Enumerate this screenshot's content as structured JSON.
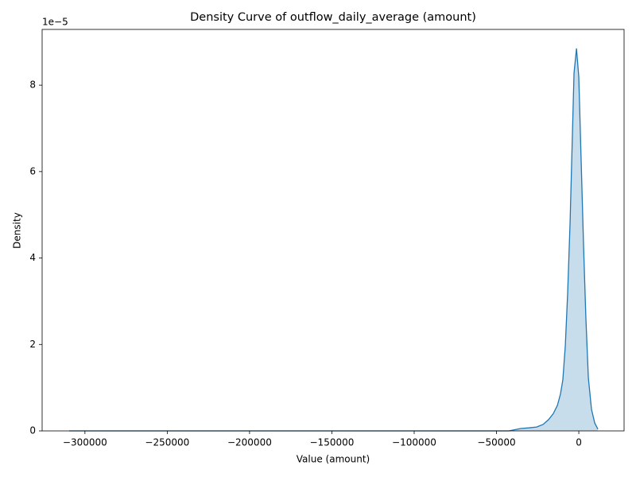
{
  "chart_data": {
    "type": "area",
    "title": "Density Curve of outflow_daily_average (amount)",
    "xlabel": "Value (amount)",
    "ylabel": "Density",
    "y_offset_label": "1e−5",
    "color": "#1f77b4",
    "x": [
      -309600,
      -42500,
      -40100,
      -35300,
      -30400,
      -25600,
      -21700,
      -18400,
      -15500,
      -13000,
      -11100,
      -9700,
      -8200,
      -6800,
      -5300,
      -3900,
      -2900,
      -1400,
      0,
      1400,
      2900,
      4300,
      5800,
      7700,
      9700,
      11600
    ],
    "y": [
      0,
      0,
      1.8e-07,
      5.5e-07,
      7e-07,
      9e-07,
      1.5e-06,
      2.6e-06,
      4e-06,
      5.9e-06,
      8.6e-06,
      1.18e-05,
      1.97e-05,
      3.16e-05,
      4.82e-05,
      6.84e-05,
      8.28e-05,
      8.85e-05,
      8.18e-05,
      6.29e-05,
      4.27e-05,
      2.61e-05,
      1.23e-05,
      5e-06,
      1.8e-06,
      4e-07
    ],
    "xlim": [
      -326000,
      27500
    ],
    "ylim": [
      0,
      9.29e-05
    ],
    "xticks": [
      {
        "value": -300000,
        "label": "−300000"
      },
      {
        "value": -250000,
        "label": "−250000"
      },
      {
        "value": -200000,
        "label": "−200000"
      },
      {
        "value": -150000,
        "label": "−150000"
      },
      {
        "value": -100000,
        "label": "−100000"
      },
      {
        "value": -50000,
        "label": "−50000"
      },
      0
    ],
    "yticks": [
      0,
      {
        "value": 2e-05,
        "label": "2"
      },
      {
        "value": 4e-05,
        "label": "4"
      },
      {
        "value": 6e-05,
        "label": "6"
      },
      {
        "value": 8e-05,
        "label": "8"
      }
    ]
  }
}
